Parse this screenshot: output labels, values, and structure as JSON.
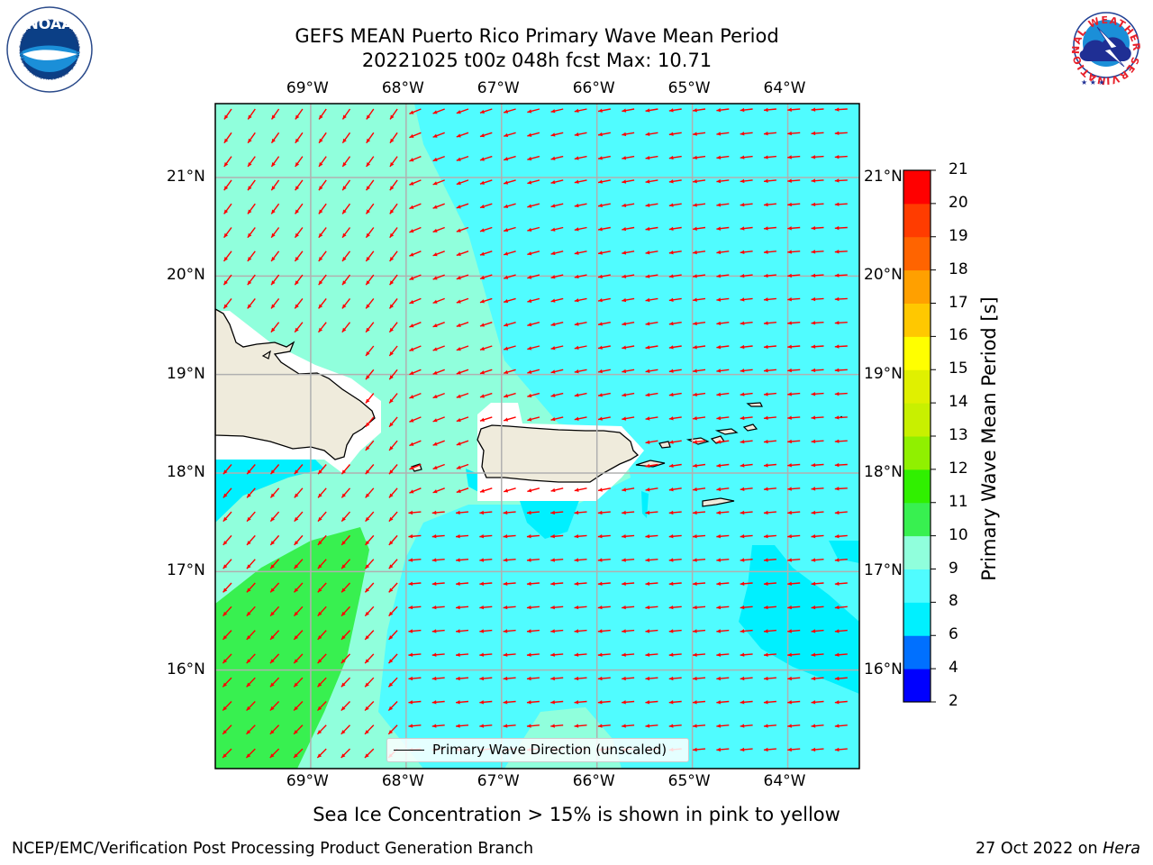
{
  "title": {
    "line1": "GEFS MEAN Puerto Rico Primary Wave Mean Period",
    "line2": "20221025 t00z 048h fcst   Max: 10.71"
  },
  "map": {
    "lon_range": [
      -70.0,
      -63.25
    ],
    "lat_range": [
      15.0,
      21.75
    ],
    "lon_ticks": [
      "69°W",
      "68°W",
      "67°W",
      "66°W",
      "65°W",
      "64°W"
    ],
    "lat_ticks": [
      "21°N",
      "20°N",
      "19°N",
      "18°N",
      "17°N",
      "16°N"
    ],
    "gridlines": true,
    "legend_label": "Primary Wave Direction (unscaled)",
    "legend_placement": "bottom-center",
    "land_color": "#efebdc",
    "vector_color": "#ff0000"
  },
  "colorbar": {
    "label": "Primary Wave Mean Period [s]",
    "ticks": [
      "2",
      "4",
      "6",
      "8",
      "9",
      "10",
      "11",
      "12",
      "13",
      "14",
      "15",
      "16",
      "17",
      "18",
      "19",
      "20",
      "21"
    ],
    "bins": [
      {
        "lo": 2,
        "hi": 4,
        "color": "#0000ff"
      },
      {
        "lo": 4,
        "hi": 6,
        "color": "#0070ff"
      },
      {
        "lo": 6,
        "hi": 8,
        "color": "#00f0ff"
      },
      {
        "lo": 8,
        "hi": 9,
        "color": "#50fcff"
      },
      {
        "lo": 9,
        "hi": 10,
        "color": "#90ffdc"
      },
      {
        "lo": 10,
        "hi": 11,
        "color": "#38f050"
      },
      {
        "lo": 11,
        "hi": 12,
        "color": "#30f000"
      },
      {
        "lo": 12,
        "hi": 13,
        "color": "#90f000"
      },
      {
        "lo": 13,
        "hi": 14,
        "color": "#c8f000"
      },
      {
        "lo": 14,
        "hi": 15,
        "color": "#e0f000"
      },
      {
        "lo": 15,
        "hi": 16,
        "color": "#ffff00"
      },
      {
        "lo": 16,
        "hi": 17,
        "color": "#ffc800"
      },
      {
        "lo": 17,
        "hi": 18,
        "color": "#ffa000"
      },
      {
        "lo": 18,
        "hi": 19,
        "color": "#ff6400"
      },
      {
        "lo": 19,
        "hi": 20,
        "color": "#ff3c00"
      },
      {
        "lo": 20,
        "hi": 21,
        "color": "#ff0000"
      }
    ]
  },
  "note": "Sea Ice Concentration > 15% is shown in pink to yellow",
  "footer": {
    "left": "NCEP/EMC/Verification Post Processing Product Generation Branch",
    "right_prefix": "27 Oct 2022 on ",
    "right_host": "Hera"
  },
  "logos": {
    "left_text": "NOAA",
    "left_ring_text": "NATIONAL OCEANIC AND ATMOSPHERIC ADMINISTRATION · U.S. DEPARTMENT OF COMMERCE",
    "right_ring_text": "NATIONAL WEATHER SERVICE"
  }
}
